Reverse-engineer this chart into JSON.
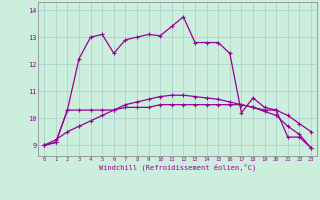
{
  "xlabel": "Windchill (Refroidissement éolien,°C)",
  "background_color": "#cceedd",
  "grid_color": "#aacccc",
  "line_color": "#990099",
  "x_ticks": [
    0,
    1,
    2,
    3,
    4,
    5,
    6,
    7,
    8,
    9,
    10,
    11,
    12,
    13,
    14,
    15,
    16,
    17,
    18,
    19,
    20,
    21,
    22,
    23
  ],
  "y_ticks": [
    9,
    10,
    11,
    12,
    13,
    14
  ],
  "ylim": [
    8.6,
    14.3
  ],
  "xlim": [
    -0.5,
    23.5
  ],
  "series1": [
    9.0,
    9.1,
    10.3,
    12.2,
    13.0,
    13.1,
    12.4,
    12.9,
    13.0,
    13.1,
    13.05,
    13.4,
    13.75,
    12.8,
    12.8,
    12.8,
    12.4,
    10.2,
    10.75,
    10.4,
    10.3,
    9.3,
    9.3,
    8.9
  ],
  "series2": [
    9.0,
    9.1,
    10.3,
    10.3,
    10.3,
    10.3,
    10.3,
    10.4,
    10.4,
    10.4,
    10.5,
    10.5,
    10.5,
    10.5,
    10.5,
    10.5,
    10.5,
    10.5,
    10.4,
    10.3,
    10.3,
    10.1,
    9.8,
    9.5
  ],
  "series3": [
    9.0,
    9.2,
    9.5,
    9.7,
    9.9,
    10.1,
    10.3,
    10.5,
    10.6,
    10.7,
    10.8,
    10.85,
    10.85,
    10.8,
    10.75,
    10.7,
    10.6,
    10.5,
    10.4,
    10.25,
    10.1,
    9.7,
    9.4,
    8.9
  ]
}
